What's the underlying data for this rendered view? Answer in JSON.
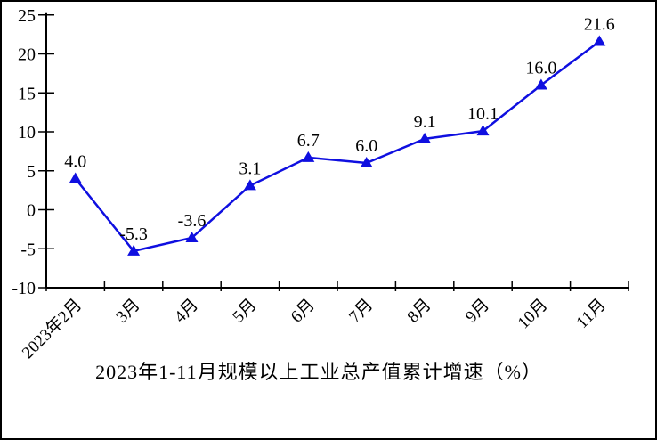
{
  "chart_data": {
    "type": "line",
    "title": "2023年1-11月规模以上工业总产值累计增速（%）",
    "categories": [
      "2023年2月",
      "3月",
      "4月",
      "5月",
      "6月",
      "7月",
      "8月",
      "9月",
      "10月",
      "11月"
    ],
    "values": [
      4.0,
      -5.3,
      -3.6,
      3.1,
      6.7,
      6.0,
      9.1,
      10.1,
      16.0,
      21.6
    ],
    "point_labels": [
      "4.0",
      "-5.3",
      "-3.6",
      "3.1",
      "6.7",
      "6.0",
      "9.1",
      "10.1",
      "16.0",
      "21.6"
    ],
    "ylim": [
      -10,
      25
    ],
    "yticks": [
      25,
      20,
      15,
      10,
      5,
      0,
      -5,
      -10
    ],
    "grid": false,
    "legend": "none",
    "marker": "triangle-up",
    "line_color": "#0f0fe0",
    "axis_color": "#000000",
    "text_color": "#000000",
    "background": "#ffffff",
    "frame_color": "#000000"
  }
}
